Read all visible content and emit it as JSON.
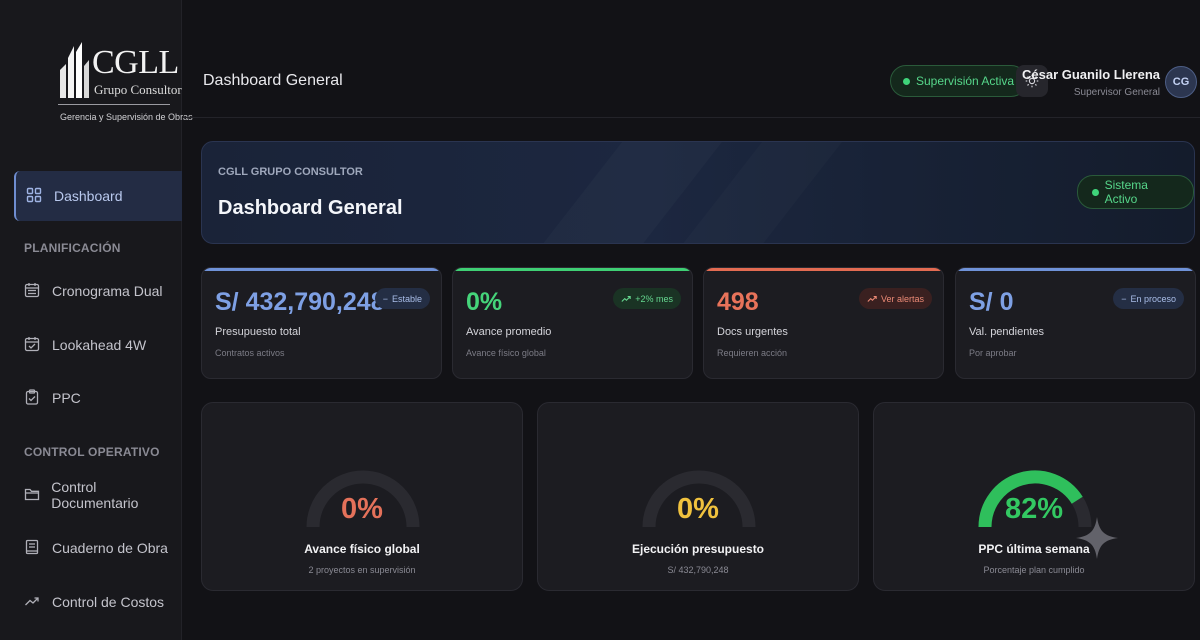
{
  "logo": {
    "brand": "CGLL",
    "company": "Grupo Consultor",
    "tagline": "Gerencia y Supervisión de Obras"
  },
  "sidebar": {
    "items": [
      {
        "label": "Dashboard",
        "icon": "grid-icon",
        "active": true
      },
      {
        "label": "Cronograma Dual",
        "icon": "calendar-icon"
      },
      {
        "label": "Lookahead 4W",
        "icon": "calendar-check-icon"
      },
      {
        "label": "PPC",
        "icon": "clipboard-check-icon"
      },
      {
        "label": "Control Documentario",
        "icon": "folder-icon"
      },
      {
        "label": "Cuaderno de Obra",
        "icon": "notebook-icon"
      },
      {
        "label": "Control de Costos",
        "icon": "trend-up-icon"
      }
    ],
    "sections": [
      "PLANIFICACIÓN",
      "CONTROL OPERATIVO"
    ]
  },
  "header": {
    "title": "Dashboard General",
    "status_pill": "Supervisión Activa",
    "theme_icon": "sun-icon",
    "user_name": "César Guanilo Llerena",
    "user_role": "Supervisor General",
    "avatar_initials": "CG"
  },
  "banner": {
    "subtitle": "CGLL GRUPO CONSULTOR",
    "title": "Dashboard General",
    "status": "Sistema Activo"
  },
  "stats": [
    {
      "value": "S/ 432,790,248",
      "label": "Presupuesto total",
      "desc": "Contratos activos",
      "badge": "Estable",
      "badge_icon": "minus-icon",
      "color": "#6f92d8"
    },
    {
      "value": "0%",
      "label": "Avance promedio",
      "desc": "Avance físico global",
      "badge": "+2% mes",
      "badge_icon": "trend-up-icon",
      "color": "#3fcf74"
    },
    {
      "value": "498",
      "label": "Docs urgentes",
      "desc": "Requieren acción",
      "badge": "Ver alertas",
      "badge_icon": "trend-up-icon",
      "color": "#e36b52"
    },
    {
      "value": "S/ 0",
      "label": "Val. pendientes",
      "desc": "Por aprobar",
      "badge": "En proceso",
      "badge_icon": "minus-icon",
      "color": "#6f92d8"
    }
  ],
  "gauges": [
    {
      "percent": "0%",
      "fraction": 0.0,
      "title": "Avance físico global",
      "sub": "2 proyectos en supervisión",
      "color": "#e4715a"
    },
    {
      "percent": "0%",
      "fraction": 0.0,
      "title": "Ejecución presupuesto",
      "sub": "S/ 432,790,248",
      "color": "#f0c23e"
    },
    {
      "percent": "82%",
      "fraction": 0.82,
      "title": "PPC última semana",
      "sub": "Porcentaje plan cumplido",
      "color": "#2fbf5c"
    }
  ]
}
